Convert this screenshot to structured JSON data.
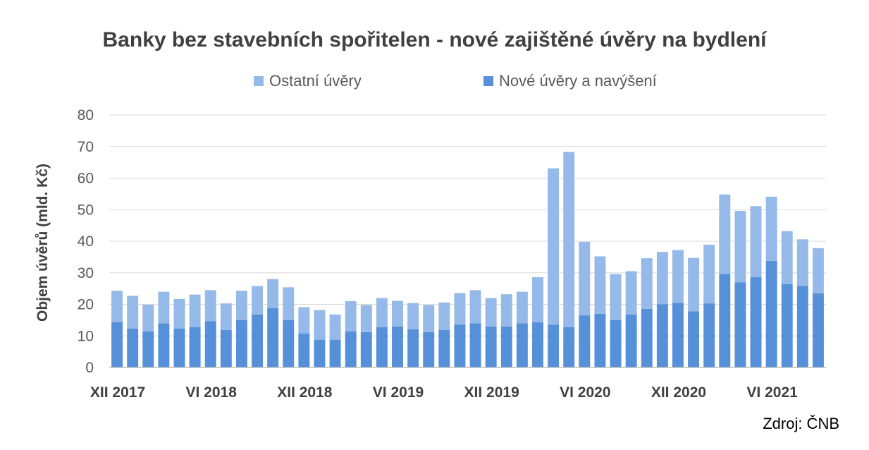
{
  "chart_data": {
    "type": "bar",
    "stacked": true,
    "title": "Banky bez stavebních spořitelen - nové zajištěné úvěry na bydlení",
    "ylabel": "Objem úvěrů (mld. Kč)",
    "xlabel": "",
    "ylim": [
      0,
      80
    ],
    "yticks": [
      0,
      10,
      20,
      30,
      40,
      50,
      60,
      70,
      80
    ],
    "grid": true,
    "legend_position": "top",
    "x_tick_labels": [
      {
        "index": 0,
        "label": "XII 2017"
      },
      {
        "index": 6,
        "label": "VI 2018"
      },
      {
        "index": 12,
        "label": "XII 2018"
      },
      {
        "index": 18,
        "label": "VI 2019"
      },
      {
        "index": 24,
        "label": "XII 2019"
      },
      {
        "index": 30,
        "label": "VI 2020"
      },
      {
        "index": 36,
        "label": "XII 2020"
      },
      {
        "index": 42,
        "label": "VI 2021"
      }
    ],
    "categories": [
      "XII 2017",
      "I 2018",
      "II 2018",
      "III 2018",
      "IV 2018",
      "V 2018",
      "VI 2018",
      "VII 2018",
      "VIII 2018",
      "IX 2018",
      "X 2018",
      "XI 2018",
      "XII 2018",
      "I 2019",
      "II 2019",
      "III 2019",
      "IV 2019",
      "V 2019",
      "VI 2019",
      "VII 2019",
      "VIII 2019",
      "IX 2019",
      "X 2019",
      "XI 2019",
      "XII 2019",
      "I 2020",
      "II 2020",
      "III 2020",
      "IV 2020",
      "V 2020",
      "VI 2020",
      "VII 2020",
      "VIII 2020",
      "IX 2020",
      "X 2020",
      "XI 2020",
      "XII 2020",
      "I 2021",
      "II 2021",
      "III 2021",
      "IV 2021",
      "V 2021",
      "VI 2021",
      "VII 2021",
      "VIII 2021",
      "IX 2021"
    ],
    "series": [
      {
        "name": "Nové úvěry a navýšení",
        "color": "#5590d8",
        "values": [
          14.3,
          12.3,
          11.4,
          14.0,
          12.3,
          12.8,
          14.7,
          11.9,
          15.0,
          16.8,
          18.8,
          15.0,
          10.8,
          8.8,
          8.8,
          11.4,
          11.2,
          12.8,
          13.0,
          12.1,
          11.2,
          11.9,
          13.6,
          14.0,
          13.0,
          13.0,
          14.0,
          14.3,
          13.6,
          12.8,
          16.5,
          17.0,
          15.0,
          16.8,
          18.6,
          20.0,
          20.5,
          17.8,
          20.3,
          29.6,
          27.0,
          28.6,
          33.8,
          26.4,
          25.8,
          23.5
        ]
      },
      {
        "name": "Ostatní úvěry",
        "color": "#95b9e8",
        "values": [
          10.0,
          10.4,
          8.5,
          10.0,
          9.4,
          10.3,
          9.8,
          8.4,
          9.3,
          9.0,
          9.2,
          10.4,
          8.3,
          9.4,
          8.0,
          9.6,
          8.6,
          9.2,
          8.1,
          8.3,
          8.6,
          8.7,
          10.0,
          10.5,
          9.0,
          10.2,
          10.0,
          14.3,
          49.5,
          55.5,
          23.3,
          18.2,
          14.6,
          13.7,
          16.0,
          16.6,
          16.7,
          16.9,
          18.6,
          25.2,
          22.6,
          22.5,
          20.3,
          16.8,
          14.8,
          14.3
        ]
      }
    ],
    "source_note": "Zdroj: ČNB"
  }
}
